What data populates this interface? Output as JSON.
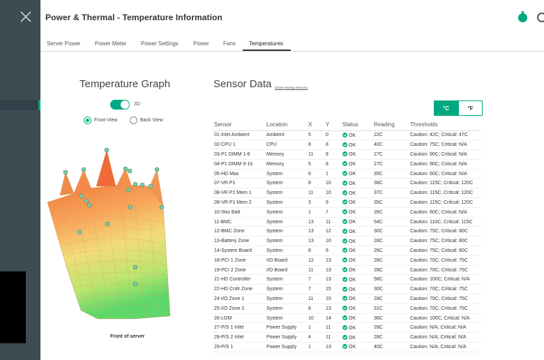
{
  "header": {
    "title": "Power & Thermal - Temperature Information"
  },
  "tabs": [
    {
      "label": "Server Power",
      "active": false
    },
    {
      "label": "Power Meter",
      "active": false
    },
    {
      "label": "Power Settings",
      "active": false
    },
    {
      "label": "Power",
      "active": false
    },
    {
      "label": "Fans",
      "active": false
    },
    {
      "label": "Temperatures",
      "active": true
    }
  ],
  "graph": {
    "title": "Temperature Graph",
    "toggle_3d_label": "3D",
    "toggle_3d_on": true,
    "view_options": [
      {
        "label": "Front View",
        "selected": true
      },
      {
        "label": "Back View",
        "selected": false
      }
    ],
    "front_label": "Front of server"
  },
  "sensor_panel": {
    "title": "Sensor Data",
    "show_missing_link": "(show missing sensors)",
    "units": [
      {
        "label": "°C",
        "selected": true
      },
      {
        "label": "°F",
        "selected": false
      }
    ],
    "columns": [
      "Sensor",
      "Location",
      "X",
      "Y",
      "Status",
      "Reading",
      "Thresholds"
    ],
    "rows": [
      [
        "01-Inlet Ambient",
        "Ambient",
        "5",
        "0",
        "OK",
        "22C",
        "Caution: 42C; Critical: 47C"
      ],
      [
        "02-CPU 1",
        "CPU",
        "8",
        "8",
        "OK",
        "40C",
        "Caution: 75C; Critical: N/A"
      ],
      [
        "03-P1 DIMM 1-8",
        "Memory",
        "11",
        "8",
        "OK",
        "27C",
        "Caution: 90C; Critical: N/A"
      ],
      [
        "04-P1 DIMM 9-16",
        "Memory",
        "5",
        "8",
        "OK",
        "27C",
        "Caution: 90C; Critical: N/A"
      ],
      [
        "05-HD Max",
        "System",
        "6",
        "1",
        "OK",
        "35C",
        "Caution: 60C; Critical: N/A"
      ],
      [
        "07-VR P1",
        "System",
        "8",
        "10",
        "OK",
        "38C",
        "Caution: 115C; Critical: 120C"
      ],
      [
        "08-VR P1 Mem 1",
        "System",
        "11",
        "10",
        "OK",
        "37C",
        "Caution: 115C; Critical: 120C"
      ],
      [
        "09-VR P1 Mem 2",
        "System",
        "3",
        "9",
        "OK",
        "35C",
        "Caution: 115C; Critical: 120C"
      ],
      [
        "10-Stor Batt",
        "System",
        "1",
        "7",
        "OK",
        "26C",
        "Caution: 60C; Critical: N/A"
      ],
      [
        "11-BMC",
        "System",
        "13",
        "11",
        "OK",
        "54C",
        "Caution: 110C; Critical: 115C"
      ],
      [
        "12-BMC Zone",
        "System",
        "13",
        "12",
        "OK",
        "30C",
        "Caution: 75C; Critical: 80C"
      ],
      [
        "13-Battery Zone",
        "System",
        "13",
        "10",
        "OK",
        "28C",
        "Caution: 75C; Critical: 80C"
      ],
      [
        "14-System Board",
        "System",
        "8",
        "6",
        "OK",
        "26C",
        "Caution: 75C; Critical: 80C"
      ],
      [
        "18-PCI 1 Zone",
        "I/O Board",
        "12",
        "13",
        "OK",
        "28C",
        "Caution: 70C; Critical: 75C"
      ],
      [
        "19-PCI 2 Zone",
        "I/O Board",
        "11",
        "13",
        "OK",
        "28C",
        "Caution: 70C; Critical: 75C"
      ],
      [
        "21-HD Controller",
        "System",
        "7",
        "13",
        "OK",
        "58C",
        "Caution: 100C; Critical: N/A"
      ],
      [
        "22-HD Cntlr Zone",
        "System",
        "7",
        "15",
        "OK",
        "30C",
        "Caution: 70C; Critical: 75C"
      ],
      [
        "24-I/O Zone 1",
        "System",
        "11",
        "15",
        "OK",
        "28C",
        "Caution: 70C; Critical: 75C"
      ],
      [
        "25-I/O Zone 2",
        "System",
        "8",
        "13",
        "OK",
        "31C",
        "Caution: 70C; Critical: 75C"
      ],
      [
        "26-LOM",
        "System",
        "10",
        "14",
        "OK",
        "36C",
        "Caution: 100C; Critical: N/A"
      ],
      [
        "27-P/S 1 Inlet",
        "Power Supply",
        "1",
        "11",
        "OK",
        "28C",
        "Caution: N/A; Critical: N/A"
      ],
      [
        "28-P/S 2 Inlet",
        "Power Supply",
        "4",
        "11",
        "OK",
        "28C",
        "Caution: N/A; Critical: N/A"
      ],
      [
        "29-P/S 1",
        "Power Supply",
        "1",
        "13",
        "OK",
        "40C",
        "Caution: N/A; Critical: N/A"
      ]
    ]
  },
  "colors": {
    "accent": "#01a982",
    "sidebar": "#3d4b52"
  },
  "icons": [
    "close-icon",
    "health-icon",
    "settings-icon",
    "ok-check-icon"
  ]
}
